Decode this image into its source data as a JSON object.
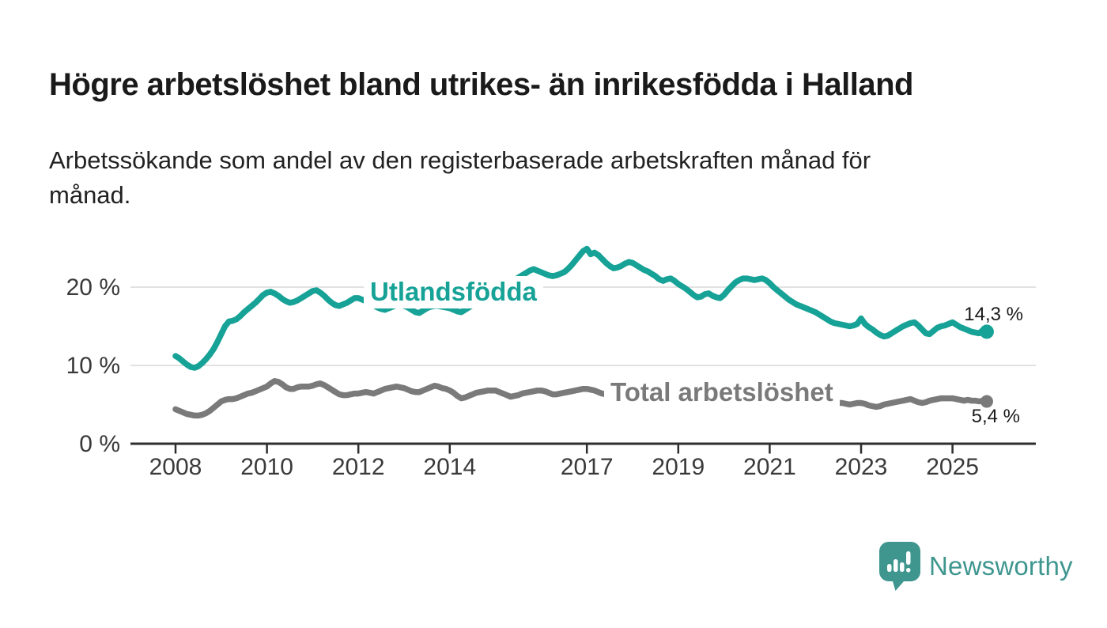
{
  "title": "Högre arbetslöshet bland utrikes- än inrikesfödda i Halland",
  "subtitle": "Arbetssökande som andel av den registerbaserade arbetskraften månad för\nmånad.",
  "chart_data": {
    "type": "line",
    "title": "Högre arbetslöshet bland utrikes- än inrikesfödda i Halland",
    "subtitle": "Arbetssökande som andel av den registerbaserade arbetskraften månad för månad.",
    "frequency": "monthly",
    "x_start": "2008-01",
    "x_end": "2025-10",
    "x_axis": {
      "ticks": [
        2008,
        2010,
        2012,
        2014,
        2017,
        2019,
        2021,
        2023,
        2025
      ]
    },
    "y_axis": {
      "range": [
        0,
        26
      ],
      "gridlines": [
        10,
        20
      ],
      "labels": [
        {
          "value": 0,
          "label": "0 %"
        },
        {
          "value": 10,
          "label": "10 %"
        },
        {
          "value": 20,
          "label": "20 %"
        }
      ]
    },
    "grid": "horizontal",
    "legend_position": "inline-labels",
    "series": [
      {
        "name": "Utlandsfödda",
        "color": "#16a296",
        "end_label": "14,3 %",
        "end_value": 14.3,
        "values": [
          11.2,
          10.9,
          10.5,
          10.1,
          9.8,
          9.7,
          9.9,
          10.3,
          10.8,
          11.4,
          12.1,
          13.0,
          14.0,
          15.0,
          15.6,
          15.7,
          15.9,
          16.3,
          16.8,
          17.2,
          17.6,
          18.0,
          18.5,
          19.0,
          19.3,
          19.4,
          19.2,
          18.9,
          18.5,
          18.2,
          18.0,
          18.1,
          18.3,
          18.6,
          18.9,
          19.2,
          19.5,
          19.6,
          19.3,
          18.9,
          18.4,
          18.0,
          17.7,
          17.6,
          17.8,
          18.0,
          18.3,
          18.6,
          18.6,
          18.4,
          18.2,
          18.0,
          17.7,
          17.4,
          17.2,
          17.1,
          17.3,
          17.5,
          17.7,
          17.7,
          17.6,
          17.4,
          17.1,
          16.8,
          16.7,
          17.0,
          17.3,
          17.5,
          17.6,
          17.6,
          17.5,
          17.4,
          17.3,
          17.1,
          16.9,
          16.8,
          17.1,
          17.4,
          17.7,
          17.9,
          18.1,
          18.4,
          18.7,
          19.0,
          19.3,
          19.7,
          20.0,
          20.3,
          20.6,
          20.9,
          21.2,
          21.5,
          21.8,
          22.1,
          22.3,
          22.1,
          21.9,
          21.7,
          21.5,
          21.4,
          21.5,
          21.7,
          21.9,
          22.3,
          22.8,
          23.4,
          24.0,
          24.6,
          24.9,
          24.2,
          24.4,
          24.1,
          23.6,
          23.1,
          22.7,
          22.4,
          22.5,
          22.7,
          23.0,
          23.2,
          23.1,
          22.8,
          22.5,
          22.2,
          22.0,
          21.7,
          21.4,
          21.0,
          20.8,
          21.0,
          21.1,
          20.8,
          20.4,
          20.1,
          19.8,
          19.4,
          19.0,
          18.7,
          18.8,
          19.1,
          19.2,
          18.9,
          18.7,
          18.6,
          19.0,
          19.6,
          20.1,
          20.6,
          20.9,
          21.1,
          21.1,
          21.0,
          20.9,
          21.0,
          21.1,
          20.9,
          20.5,
          20.0,
          19.6,
          19.2,
          18.8,
          18.4,
          18.1,
          17.8,
          17.6,
          17.4,
          17.2,
          17.0,
          16.8,
          16.5,
          16.2,
          15.9,
          15.6,
          15.4,
          15.3,
          15.2,
          15.1,
          15.0,
          15.1,
          15.3,
          16.0,
          15.3,
          14.9,
          14.6,
          14.2,
          13.9,
          13.7,
          13.8,
          14.1,
          14.4,
          14.7,
          15.0,
          15.2,
          15.4,
          15.5,
          15.1,
          14.6,
          14.1,
          14.0,
          14.4,
          14.8,
          15.0,
          15.1,
          15.3,
          15.5,
          15.2,
          14.9,
          14.7,
          14.5,
          14.3,
          14.2,
          14.1,
          14.5,
          14.3
        ]
      },
      {
        "name": "Total arbetslöshet",
        "color": "#7a7a7a",
        "end_label": "5,4 %",
        "end_value": 5.4,
        "values": [
          4.4,
          4.2,
          4.0,
          3.8,
          3.7,
          3.6,
          3.6,
          3.7,
          3.9,
          4.2,
          4.6,
          5.0,
          5.4,
          5.6,
          5.7,
          5.7,
          5.8,
          6.0,
          6.2,
          6.4,
          6.5,
          6.7,
          6.9,
          7.1,
          7.3,
          7.7,
          8.0,
          7.9,
          7.6,
          7.2,
          7.0,
          7.0,
          7.2,
          7.3,
          7.3,
          7.3,
          7.4,
          7.6,
          7.7,
          7.5,
          7.2,
          6.9,
          6.6,
          6.3,
          6.2,
          6.2,
          6.3,
          6.4,
          6.4,
          6.5,
          6.6,
          6.5,
          6.4,
          6.6,
          6.8,
          7.0,
          7.1,
          7.2,
          7.3,
          7.2,
          7.1,
          6.9,
          6.7,
          6.6,
          6.6,
          6.8,
          7.0,
          7.2,
          7.4,
          7.3,
          7.1,
          7.0,
          6.8,
          6.5,
          6.1,
          5.8,
          5.9,
          6.1,
          6.3,
          6.5,
          6.6,
          6.7,
          6.8,
          6.8,
          6.8,
          6.6,
          6.4,
          6.2,
          6.0,
          6.1,
          6.2,
          6.4,
          6.5,
          6.6,
          6.7,
          6.8,
          6.8,
          6.7,
          6.5,
          6.3,
          6.3,
          6.4,
          6.5,
          6.6,
          6.7,
          6.8,
          6.9,
          7.0,
          7.0,
          6.9,
          6.8,
          6.6,
          6.4,
          6.3,
          6.3,
          6.4,
          6.5,
          6.6,
          6.6,
          6.6,
          6.5,
          6.4,
          6.3,
          6.1,
          6.0,
          5.9,
          5.9,
          6.0,
          6.0,
          6.1,
          6.1,
          6.0,
          5.9,
          5.8,
          5.7,
          5.6,
          5.6,
          5.7,
          5.8,
          5.9,
          6.0,
          6.1,
          6.1,
          6.2,
          6.4,
          6.7,
          7.0,
          7.2,
          7.3,
          7.3,
          7.3,
          7.2,
          7.1,
          7.0,
          6.9,
          6.8,
          6.6,
          6.4,
          6.2,
          6.0,
          5.9,
          5.8,
          5.7,
          5.6,
          5.5,
          5.4,
          5.4,
          5.3,
          5.3,
          5.2,
          5.2,
          5.1,
          5.2,
          5.1,
          5.2,
          5.2,
          5.1,
          5.0,
          5.1,
          5.2,
          5.2,
          5.1,
          4.9,
          4.8,
          4.7,
          4.8,
          5.0,
          5.1,
          5.2,
          5.3,
          5.4,
          5.5,
          5.6,
          5.7,
          5.5,
          5.3,
          5.2,
          5.3,
          5.5,
          5.6,
          5.7,
          5.8,
          5.8,
          5.8,
          5.8,
          5.7,
          5.6,
          5.5,
          5.6,
          5.5,
          5.5,
          5.4,
          5.5,
          5.4
        ]
      }
    ]
  },
  "style": {
    "gridline_color": "#d9d9d9",
    "axis_color": "#2e2e2e",
    "tick_label_color": "#3a3a3a",
    "value_label_color": "#1a1a1a"
  },
  "branding": {
    "logo_text": "Newsworthy",
    "logo_color": "#3e968f",
    "logo_icon": "newsworthy-speech-bubble-bar-chart-icon"
  }
}
